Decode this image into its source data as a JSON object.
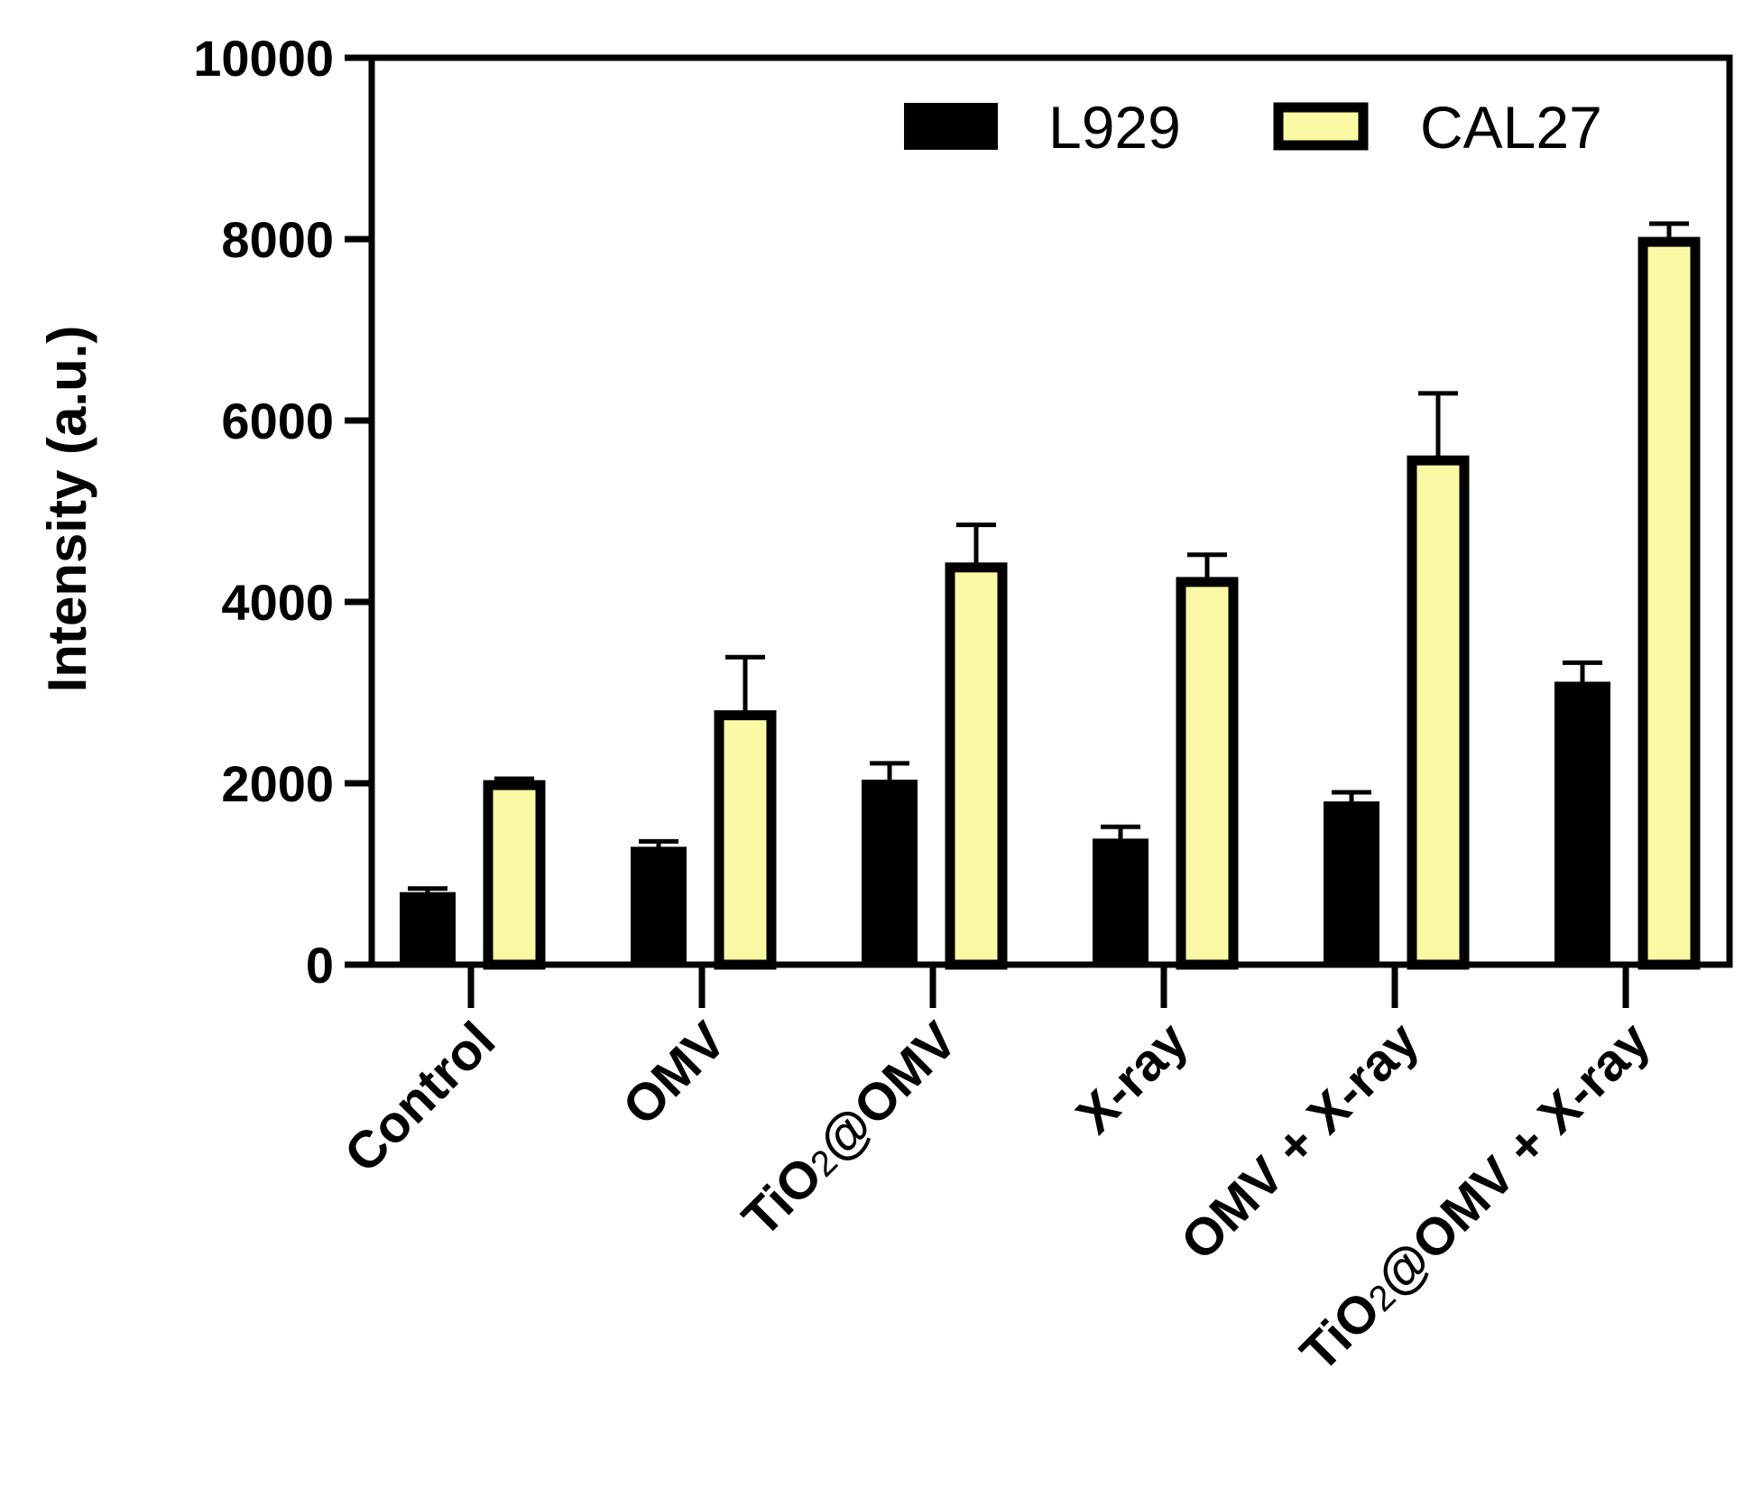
{
  "chart_data": {
    "type": "bar",
    "ylabel": "Intensity (a.u.)",
    "xlabel": "",
    "ylim": [
      0,
      10000
    ],
    "yticks": [
      "0",
      "2000",
      "4000",
      "6000",
      "8000",
      "10000"
    ],
    "categories": [
      {
        "main": "Control",
        "sub": "",
        "tail": ""
      },
      {
        "main": "OMV",
        "sub": "",
        "tail": ""
      },
      {
        "main": "TiO",
        "sub": "2",
        "tail": "@OMV"
      },
      {
        "main": "X-ray",
        "sub": "",
        "tail": ""
      },
      {
        "main": "OMV + X-ray",
        "sub": "",
        "tail": ""
      },
      {
        "main": "TiO",
        "sub": "2",
        "tail": "@OMV + X-ray"
      }
    ],
    "series": [
      {
        "name": "L929",
        "color": "#000000",
        "values": [
          780,
          1280,
          2020,
          1370,
          1780,
          3100
        ],
        "errors": [
          60,
          80,
          200,
          150,
          120,
          230
        ]
      },
      {
        "name": "CAL27",
        "color": "#fafaa6",
        "values": [
          1980,
          2750,
          4380,
          4220,
          5560,
          7970
        ],
        "errors": [
          70,
          640,
          470,
          300,
          740,
          200
        ]
      }
    ],
    "legend_position": "top-right",
    "grid": false
  }
}
